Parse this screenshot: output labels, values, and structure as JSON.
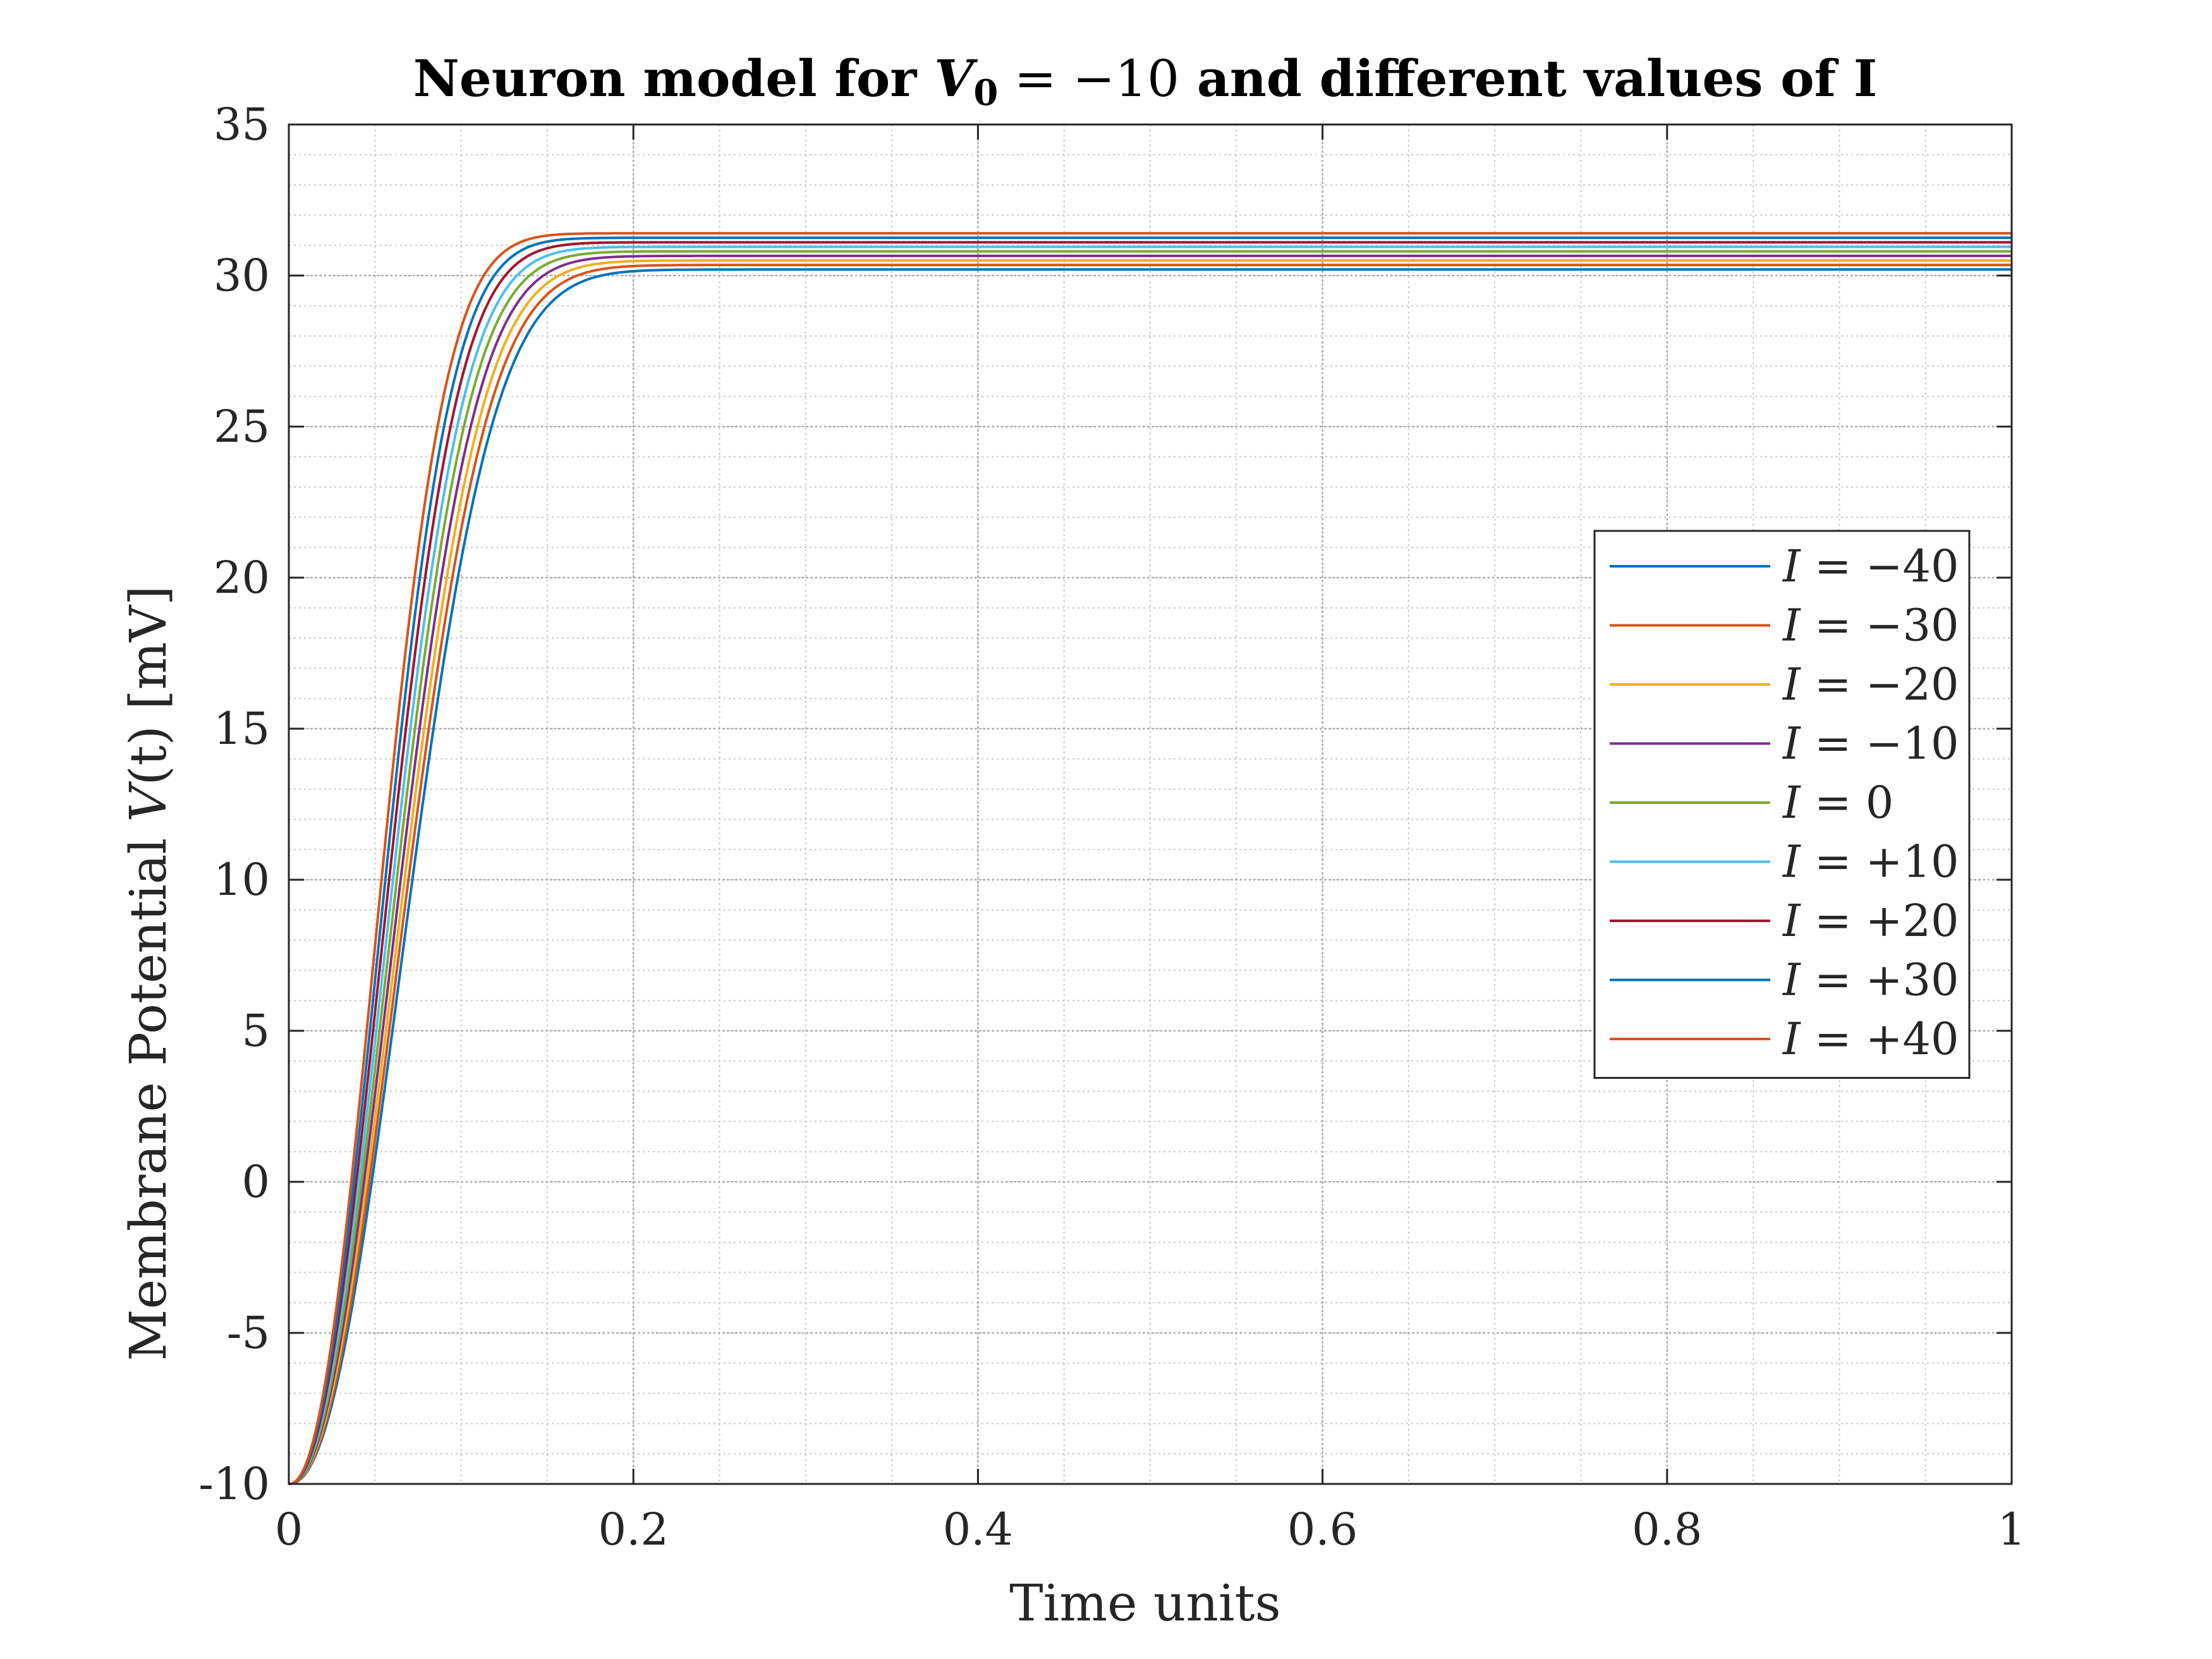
{
  "chart_data": {
    "type": "line",
    "title": {
      "prefix": "Neuron model for ",
      "var": "V",
      "sub": "0",
      "mid": " = −10",
      "suffix": " and different values of I"
    },
    "xlabel": "Time units",
    "ylabel": {
      "prefix": "Membrane Potential ",
      "var": "V",
      "arg": "(t)",
      "suffix": " [mV]"
    },
    "xlim": [
      0,
      1
    ],
    "ylim": [
      -10,
      35
    ],
    "xticks": [
      0,
      0.2,
      0.4,
      0.6,
      0.8,
      1
    ],
    "xtick_labels": [
      "0",
      "0.2",
      "0.4",
      "0.6",
      "0.8",
      "1"
    ],
    "yticks": [
      -10,
      -5,
      0,
      5,
      10,
      15,
      20,
      25,
      30,
      35
    ],
    "ytick_labels": [
      "-10",
      "-5",
      "0",
      "5",
      "10",
      "15",
      "20",
      "25",
      "30",
      "35"
    ],
    "grid": true,
    "minor_grid": true,
    "legend_position": "right-center",
    "initial_value": -10,
    "series": [
      {
        "name": "I = −40",
        "current": -40,
        "steady_state": 30.2,
        "color": "#0072BD"
      },
      {
        "name": "I = −30",
        "current": -30,
        "steady_state": 30.35,
        "color": "#D95319"
      },
      {
        "name": "I = −20",
        "current": -20,
        "steady_state": 30.5,
        "color": "#EDB120"
      },
      {
        "name": "I = −10",
        "current": -10,
        "steady_state": 30.65,
        "color": "#7E2F8E"
      },
      {
        "name": "I = 0",
        "current": 0,
        "steady_state": 30.8,
        "color": "#77AC30"
      },
      {
        "name": "I = +10",
        "current": 10,
        "steady_state": 30.95,
        "color": "#4DBEEE"
      },
      {
        "name": "I = +20",
        "current": 20,
        "steady_state": 31.1,
        "color": "#A2142F"
      },
      {
        "name": "I = +30",
        "current": 30,
        "steady_state": 31.25,
        "color": "#0072BD"
      },
      {
        "name": "I = +40",
        "current": 40,
        "steady_state": 31.4,
        "color": "#D95319"
      }
    ]
  }
}
